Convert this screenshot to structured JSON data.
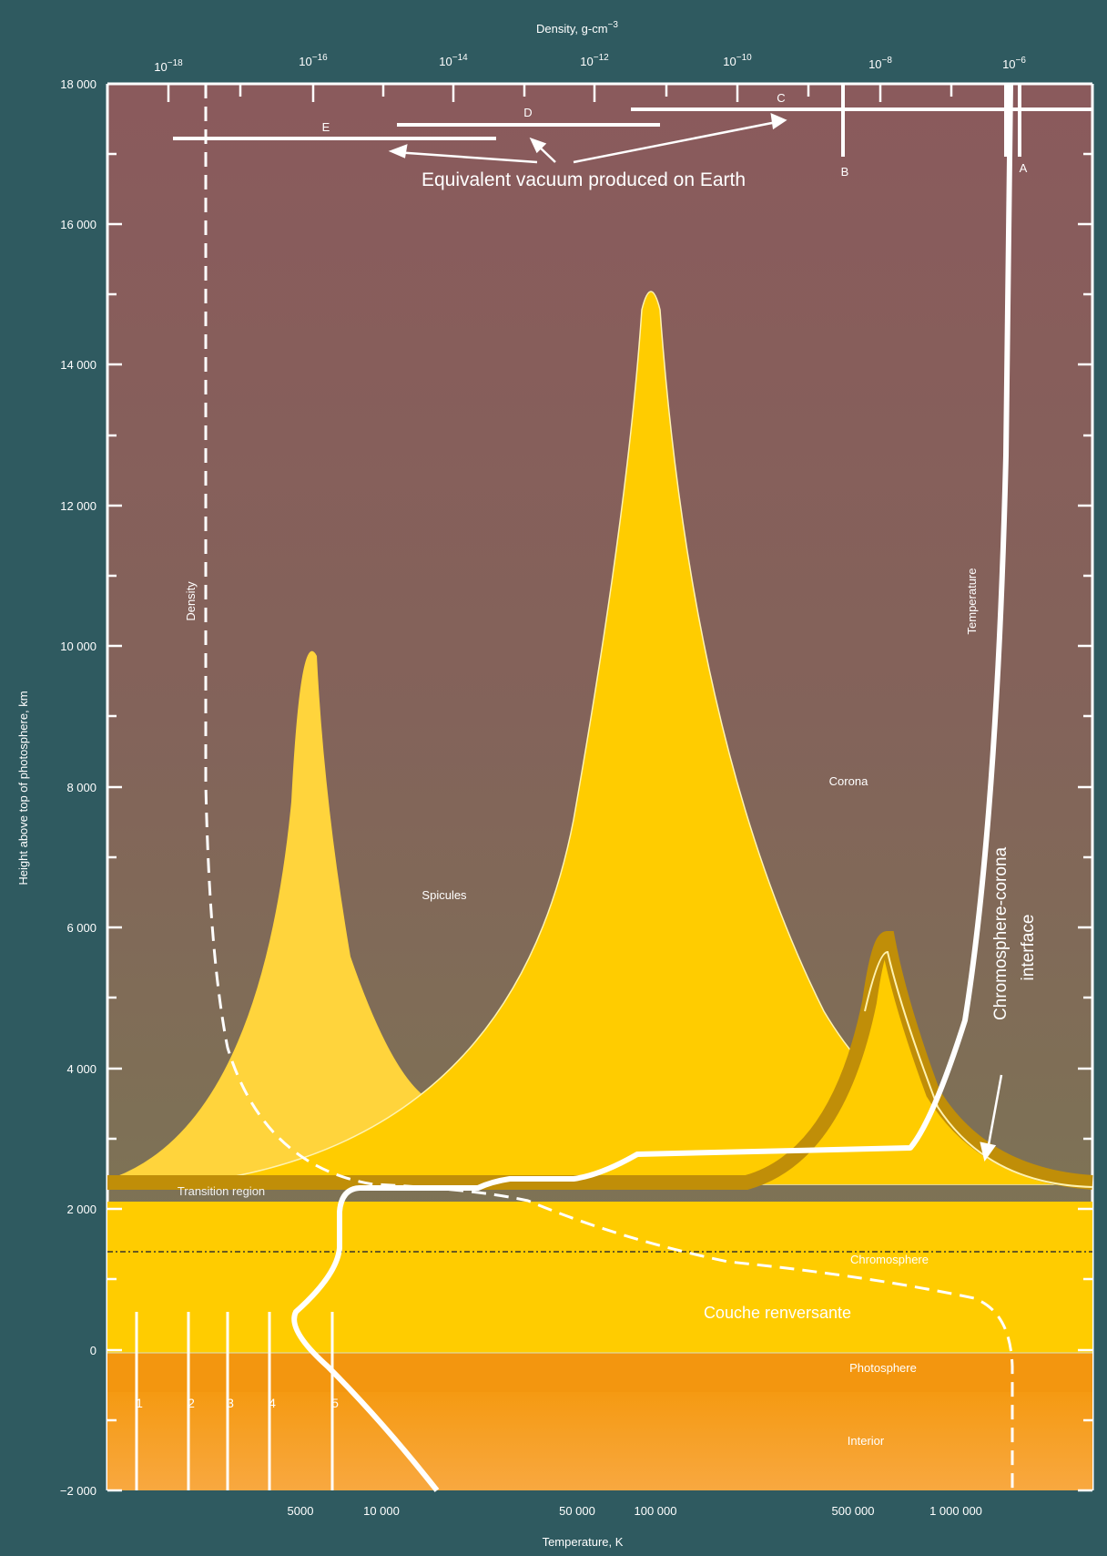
{
  "top_axis": {
    "title": "Density, g-cm",
    "title_exponent": "−3",
    "ticks": [
      {
        "base": "10",
        "exp": "−18"
      },
      {
        "base": "10",
        "exp": "−16"
      },
      {
        "base": "10",
        "exp": "−14"
      },
      {
        "base": "10",
        "exp": "−12"
      },
      {
        "base": "10",
        "exp": "−10"
      },
      {
        "base": "10",
        "exp": "−8"
      },
      {
        "base": "10",
        "exp": "−6"
      }
    ]
  },
  "y_axis": {
    "title": "Height above top of photosphere, km",
    "ticks": [
      "18 000",
      "16 000",
      "14 000",
      "12 000",
      "10 000",
      "8 000",
      "6 000",
      "4 000",
      "2 000",
      "0",
      "−2 000"
    ]
  },
  "bottom_axis": {
    "title": "Temperature, K",
    "ticks": [
      "5000",
      "10 000",
      "50 000",
      "100 000",
      "500 000",
      "1 000 000"
    ]
  },
  "vacuum": {
    "label": "Equivalent vacuum produced on Earth",
    "ranges": [
      "A",
      "B",
      "C",
      "D",
      "E"
    ]
  },
  "curve_labels": {
    "density": "Density",
    "temperature": "Temperature"
  },
  "regions": {
    "spicules": "Spicules",
    "corona": "Corona",
    "transition": "Transition region",
    "chromosphere": "Chromosphere",
    "couche": "Couche renversante",
    "photosphere": "Photosphere",
    "interior": "Interior"
  },
  "interface_label": [
    "Chromosphere-corona",
    "interface"
  ],
  "markers": [
    "1",
    "2",
    "3",
    "4",
    "5"
  ],
  "colors": {
    "background": "#2f5a60",
    "plot_top": "#8a5a5c",
    "plot_bottom": "#7c7a52",
    "spicule": "#ffcc00",
    "spicule_light": "#ffd640",
    "transition_band": "#c08e08",
    "chromosphere": "#ffcc00",
    "photosphere": "#f59a12",
    "interior": "#f7a23a",
    "curve": "#ffffff"
  }
}
